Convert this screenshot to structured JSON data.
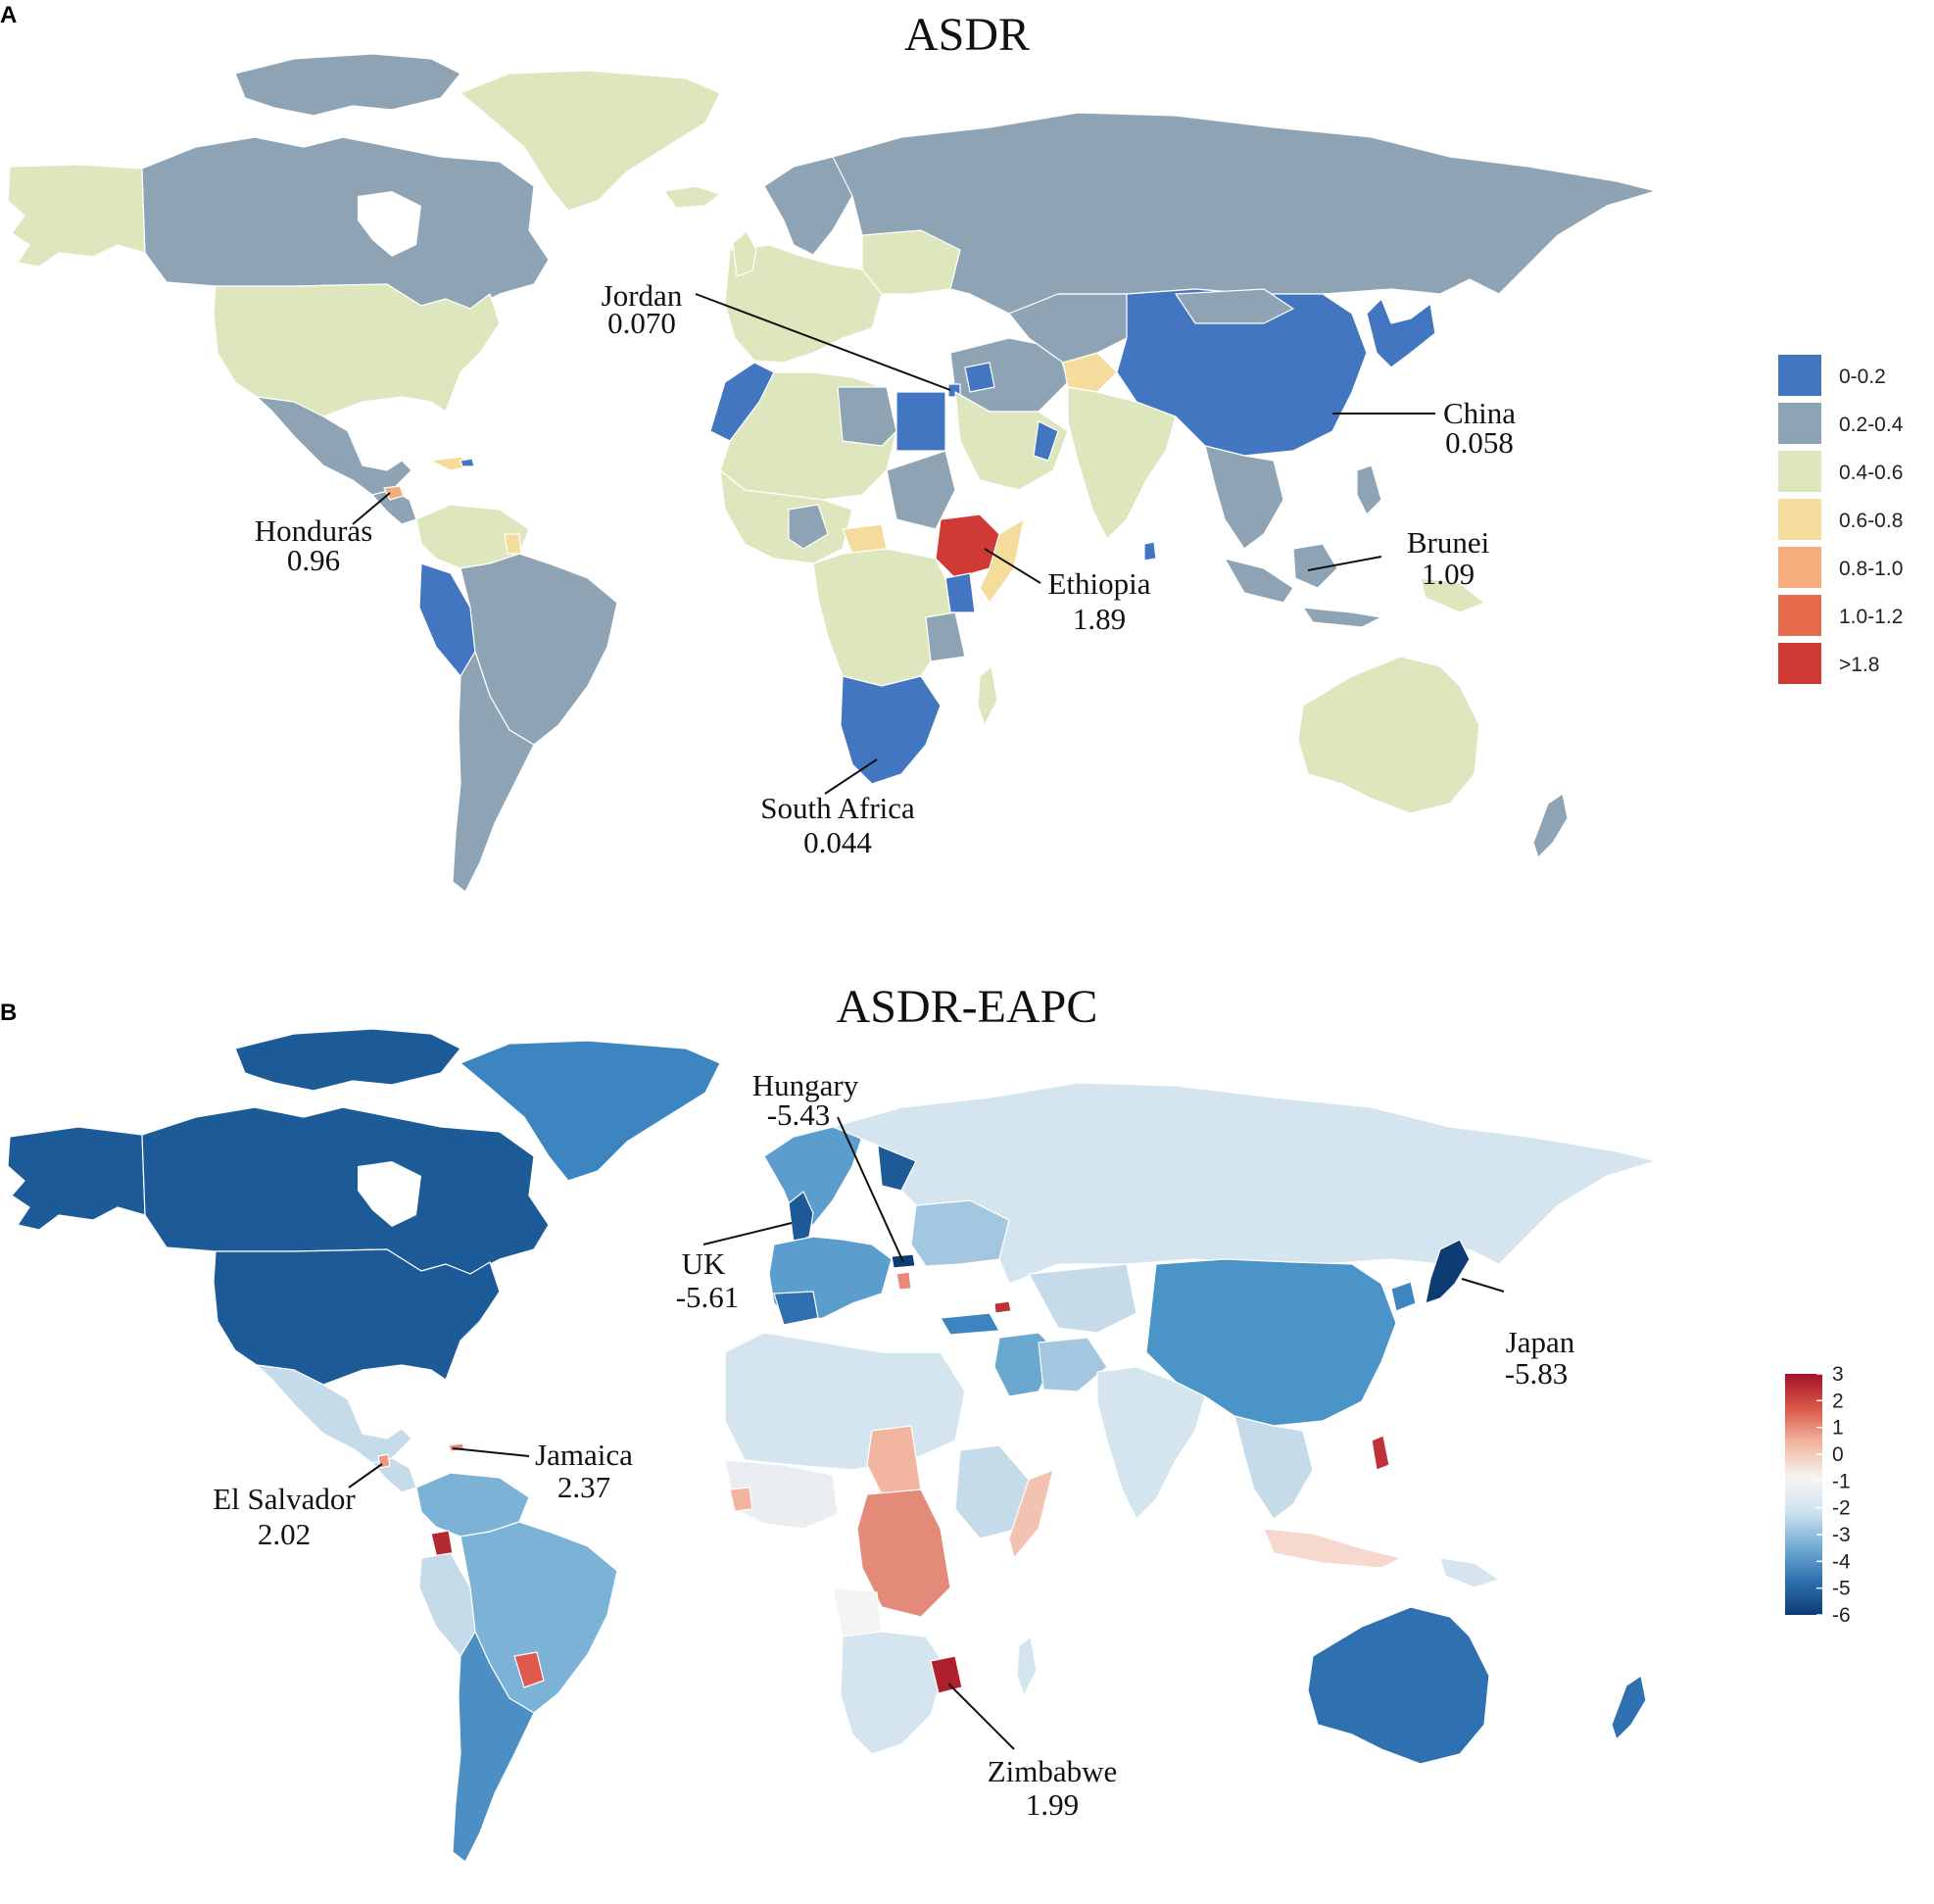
{
  "panel_a": {
    "letter": "A",
    "title": "ASDR",
    "legend": [
      {
        "label": "0-0.2",
        "color": "#4276c0"
      },
      {
        "label": "0.2-0.4",
        "color": "#8ea4b4"
      },
      {
        "label": "0.4-0.6",
        "color": "#dee6bd"
      },
      {
        "label": "0.6-0.8",
        "color": "#f6dc9c"
      },
      {
        "label": "0.8-1.0",
        "color": "#f4ad7b"
      },
      {
        "label": "1.0-1.2",
        "color": "#e66b4a"
      },
      {
        "label": ">1.8",
        "color": "#cf3b34"
      }
    ],
    "callouts": [
      {
        "name": "Jordan",
        "value": "0.070"
      },
      {
        "name": "China",
        "value": "0.058"
      },
      {
        "name": "Honduras",
        "value": "0.96"
      },
      {
        "name": "Brunei",
        "value": "1.09"
      },
      {
        "name": "Ethiopia",
        "value": "1.89"
      },
      {
        "name": "South Africa",
        "value": "0.044"
      }
    ]
  },
  "panel_b": {
    "letter": "B",
    "title": "ASDR-EAPC",
    "colorbar": {
      "ticks": [
        "3",
        "2",
        "1",
        "0",
        "-1",
        "-2",
        "-3",
        "-4",
        "-5",
        "-6"
      ],
      "min": -6,
      "max": 3,
      "colors": [
        "#0d3c75",
        "#2f71b0",
        "#76add6",
        "#cfe3ef",
        "#f6f4f2",
        "#f2b6a0",
        "#d95848",
        "#a4112a"
      ]
    },
    "callouts": [
      {
        "name": "Hungary",
        "value": "-5.43"
      },
      {
        "name": "UK",
        "value": "-5.61"
      },
      {
        "name": "Japan",
        "value": "-5.83"
      },
      {
        "name": "Jamaica",
        "value": "2.37"
      },
      {
        "name": "El Salvador",
        "value": "2.02"
      },
      {
        "name": "Zimbabwe",
        "value": "1.99"
      }
    ]
  }
}
